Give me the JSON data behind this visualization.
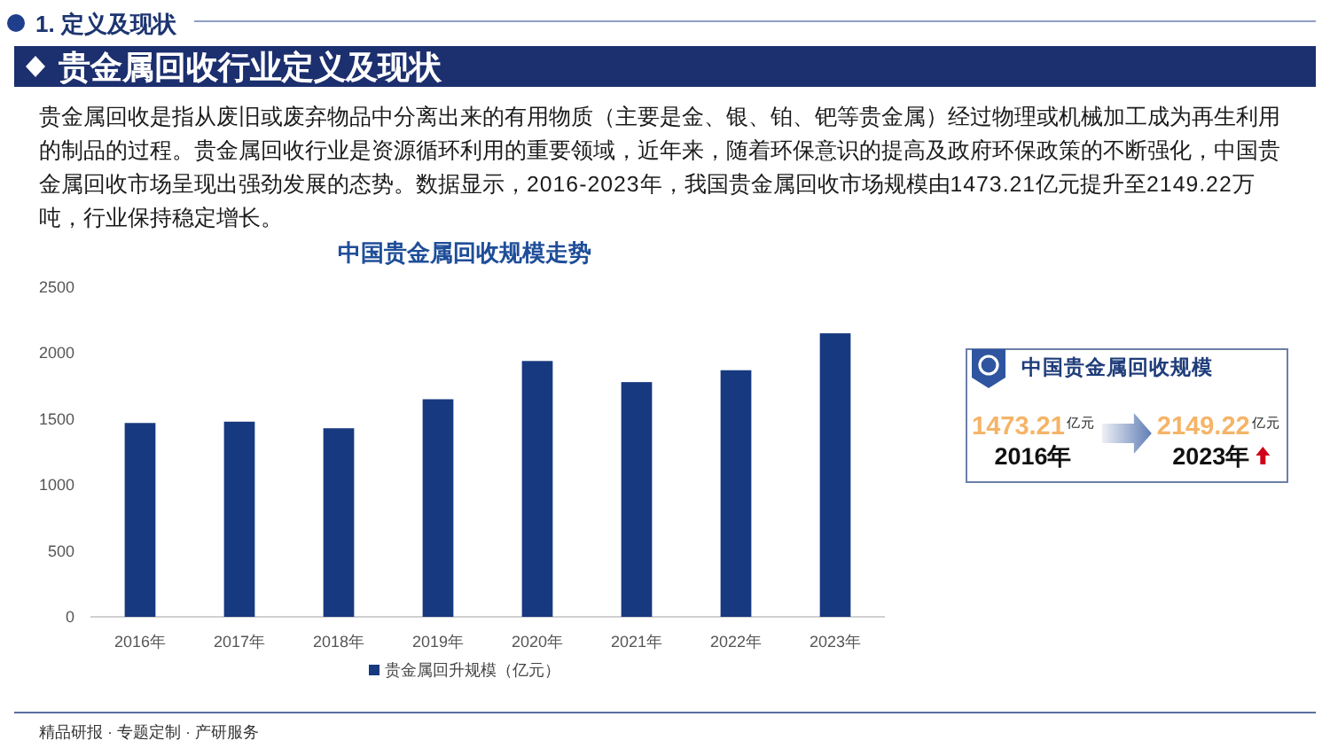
{
  "chart_data": {
    "type": "bar",
    "title": "中国贵金属回收规模走势",
    "categories": [
      "2016年",
      "2017年",
      "2018年",
      "2019年",
      "2020年",
      "2021年",
      "2022年",
      "2023年"
    ],
    "series": [
      {
        "name": "贵金属回升规模（亿元）",
        "color": "#17397f",
        "values": [
          1470,
          1480,
          1430,
          1650,
          1940,
          1780,
          1870,
          2150
        ]
      }
    ],
    "ylim": [
      0,
      2500
    ],
    "yticks": [
      0,
      500,
      1000,
      1500,
      2000,
      2500
    ],
    "legend": "bottom",
    "annotations": [
      "1. 定义及现状",
      "贵金属回收行业定义及现状",
      "贵金属回收是指从废旧或废弃物品中分离出来的有用物质（主要是金、银、铂、钯等贵金属）经过物理或机械加工成为再生利用的制品的过程。贵金属回收行业是资源循环利用的重要领域，近年来，随着环保意识的提高及政府环保政策的不断强化，中国贵金属回收市场呈现出强劲发展的态势。数据显示，2016-2023年，我国贵金属回收市场规模由1473.21亿元提升至2149.22万吨，行业保持稳定增长。",
      "中国贵金属回收规模",
      "1473.21",
      "亿元",
      "2016年",
      "2149.22",
      "亿元",
      "2023年",
      "精品研报 · 专题定制 · 产研服务"
    ]
  }
}
